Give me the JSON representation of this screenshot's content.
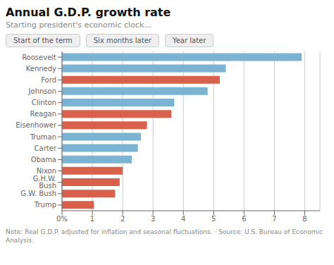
{
  "chart_data": {
    "type": "bar",
    "orientation": "horizontal",
    "title": "Annual G.D.P. growth rate",
    "subtitle": "Starting president's economic clock...",
    "annotations": [
      "Start of the term",
      "Six months later",
      "Year later"
    ],
    "note": "Note: Real G.D.P. adjusted for inflation and seasonal fluctuations.  ·  Source: U.S. Bureau of Economic Analysis.",
    "categories": [
      "Roosevelt",
      "Kennedy",
      "Ford",
      "Johnson",
      "Clinton",
      "Reagan",
      "Eisenhower",
      "Truman",
      "Carter",
      "Obama",
      "Nixon",
      "G.H.W. Bush",
      "G.W. Bush",
      "Trump"
    ],
    "values": [
      7.9,
      5.4,
      5.2,
      4.8,
      3.7,
      3.6,
      2.8,
      2.6,
      2.5,
      2.3,
      2.0,
      1.9,
      1.75,
      1.05
    ],
    "colors": [
      "#7bb3d3",
      "#7bb3d3",
      "#d9614c",
      "#7bb3d3",
      "#7bb3d3",
      "#d9614c",
      "#d9614c",
      "#7bb3d3",
      "#7bb3d3",
      "#7bb3d3",
      "#d9614c",
      "#d9614c",
      "#d9614c",
      "#d9614c"
    ],
    "xlim": [
      0,
      8.5
    ],
    "xticks": [
      {
        "value": 0,
        "label": "0%"
      },
      1,
      2,
      3,
      4,
      5,
      6,
      7,
      8
    ],
    "grid": true
  }
}
